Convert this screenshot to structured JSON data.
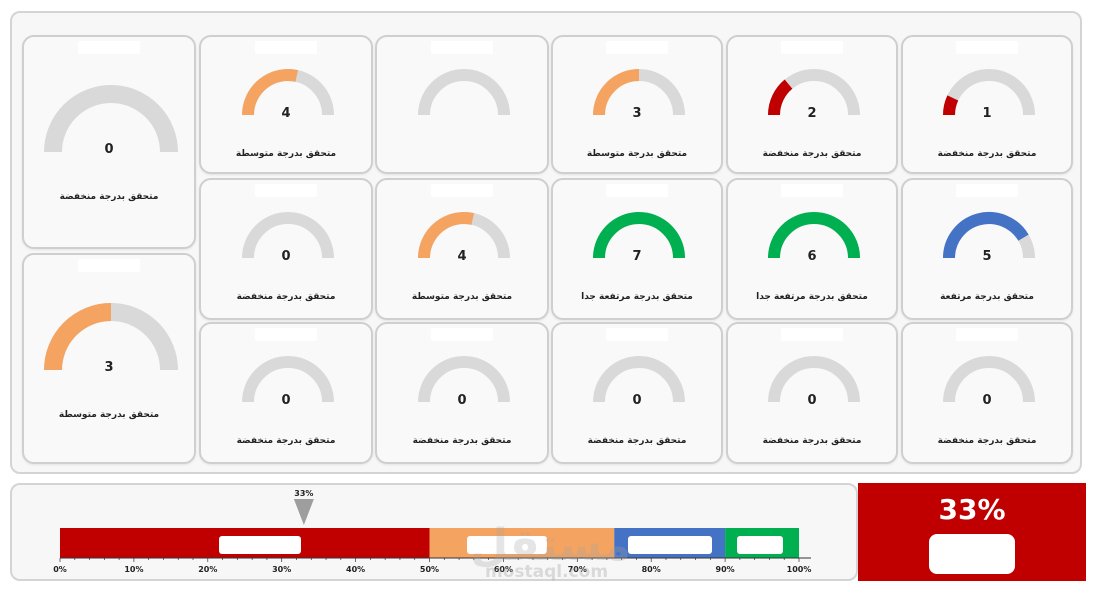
{
  "cards": [
    {
      "value": 0,
      "label": "متحقق بدرجة منخفضة",
      "fill": 0,
      "color": "#c00000"
    },
    {
      "value": 4,
      "label": "متحقق بدرجة متوسطة",
      "fill": 0.57,
      "color": "#f4a460"
    },
    {
      "value": "",
      "label": "",
      "fill": 0,
      "color": "#f4a460"
    },
    {
      "value": 3,
      "label": "متحقق بدرجة متوسطة",
      "fill": 0.5,
      "color": "#f4a460"
    },
    {
      "value": 2,
      "label": "متحقق بدرجة منخفضة",
      "fill": 0.28,
      "color": "#c00000"
    },
    {
      "value": 1,
      "label": "متحقق بدرجة منخفضة",
      "fill": 0.14,
      "color": "#c00000"
    },
    {
      "value": 3,
      "label": "متحقق بدرجة متوسطة",
      "fill": 0.5,
      "color": "#f4a460"
    },
    {
      "value": 0,
      "label": "متحقق بدرجة منخفضة",
      "fill": 0,
      "color": "#c00000"
    },
    {
      "value": 4,
      "label": "متحقق بدرجة متوسطة",
      "fill": 0.57,
      "color": "#f4a460"
    },
    {
      "value": 7,
      "label": "متحقق بدرجة مرتفعة جدا",
      "fill": 1,
      "color": "#00b050"
    },
    {
      "value": 6,
      "label": "متحقق بدرجة مرتفعة جدا",
      "fill": 1,
      "color": "#00b050"
    },
    {
      "value": 5,
      "label": "متحقق بدرجة مرتفعة",
      "fill": 0.83,
      "color": "#4472c4"
    },
    {
      "value": 0,
      "label": "متحقق بدرجة منخفضة",
      "fill": 0,
      "color": "#c00000"
    },
    {
      "value": 0,
      "label": "متحقق بدرجة منخفضة",
      "fill": 0,
      "color": "#c00000"
    },
    {
      "value": 0,
      "label": "متحقق بدرجة منخفضة",
      "fill": 0,
      "color": "#c00000"
    },
    {
      "value": 0,
      "label": "متحقق بدرجة منخفضة",
      "fill": 0,
      "color": "#c00000"
    },
    {
      "value": 0,
      "label": "متحقق بدرجة منخفضة",
      "fill": 0,
      "color": "#c00000"
    }
  ],
  "overall": {
    "percent_label": "33%",
    "pointer_label": "33%",
    "percent_value": 0.33
  },
  "scale": {
    "ticks": [
      "0%",
      "10%",
      "20%",
      "30%",
      "40%",
      "50%",
      "60%",
      "70%",
      "80%",
      "90%",
      "100%"
    ],
    "bands": [
      {
        "from": 0,
        "to": 0.5,
        "color": "#c00000"
      },
      {
        "from": 0.5,
        "to": 0.75,
        "color": "#f4a460"
      },
      {
        "from": 0.75,
        "to": 0.9,
        "color": "#4472c4"
      },
      {
        "from": 0.9,
        "to": 1.0,
        "color": "#00b050"
      }
    ]
  },
  "watermark": {
    "logo_text": "مستقل",
    "site": "mostaql.com"
  },
  "colors": {
    "track": "#d9d9d9"
  }
}
